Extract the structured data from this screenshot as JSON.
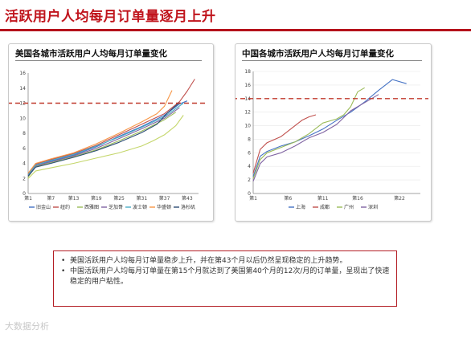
{
  "header": {
    "title": "活跃用户人均每月订单量逐月上升"
  },
  "notes": [
    "美国活跃用户人均每月订单量稳步上升，并在第43个月以后仍然呈现稳定的上升趋势。",
    "中国活跃用户人均每月订单量在第15个月就达到了美国第40个月的12次/月的订单量，呈现出了快速稳定的用户粘性。"
  ],
  "bullet_char": "•",
  "watermark": "大数据分析",
  "colors": {
    "title_red": "#c0141c",
    "ref_line": "#c0392b",
    "grid": "#e8e8e8"
  },
  "chart_data": [
    {
      "type": "line",
      "title": "美国各城市活跃用户人均每月订单量变化",
      "xlabel": "",
      "ylabel": "",
      "x_ticks": [
        "第1",
        "第7",
        "第13",
        "第19",
        "第25",
        "第31",
        "第37",
        "第43"
      ],
      "ylim": [
        0,
        16
      ],
      "yticks": [
        0,
        2,
        4,
        6,
        8,
        10,
        12,
        14,
        16
      ],
      "grid": false,
      "legend": "bottom",
      "reference_line": {
        "y": 12,
        "style": "dashed"
      },
      "series": [
        {
          "name": "旧金山",
          "color": "#4472c4",
          "x": [
            1,
            3,
            7,
            13,
            19,
            25,
            31,
            37,
            41,
            43
          ],
          "y": [
            2.5,
            3.8,
            4.3,
            5.1,
            6.2,
            7.6,
            8.9,
            10.4,
            11.9,
            12.3
          ]
        },
        {
          "name": "纽约",
          "color": "#c0504d",
          "x": [
            1,
            3,
            7,
            13,
            19,
            25,
            31,
            37,
            41,
            43,
            45
          ],
          "y": [
            2.6,
            3.9,
            4.5,
            5.3,
            6.4,
            7.8,
            9.2,
            10.6,
            12.2,
            13.6,
            15.2
          ]
        },
        {
          "name": "西雅图",
          "color": "#9bbb59",
          "x": [
            1,
            3,
            7,
            13,
            19,
            25,
            31,
            37,
            40
          ],
          "y": [
            2.2,
            3.6,
            4.1,
            4.9,
            5.8,
            7.0,
            8.3,
            9.8,
            10.8
          ]
        },
        {
          "name": "芝加哥",
          "color": "#8064a2",
          "x": [
            1,
            3,
            7,
            13,
            19,
            25,
            31,
            37,
            41
          ],
          "y": [
            2.4,
            3.7,
            4.2,
            5.0,
            6.0,
            7.3,
            8.6,
            10.0,
            11.4
          ]
        },
        {
          "name": "波士顿",
          "color": "#4bacc6",
          "x": [
            1,
            3,
            7,
            13,
            19,
            25,
            31,
            37,
            42
          ],
          "y": [
            2.5,
            3.8,
            4.4,
            5.2,
            6.3,
            7.5,
            8.8,
            10.2,
            12.0
          ]
        },
        {
          "name": "华盛顿",
          "color": "#f79646",
          "x": [
            1,
            3,
            7,
            13,
            19,
            25,
            31,
            35,
            37,
            39
          ],
          "y": [
            2.7,
            4.0,
            4.6,
            5.4,
            6.6,
            8.0,
            9.5,
            10.6,
            11.6,
            13.7
          ]
        },
        {
          "name": "洛杉矶",
          "color": "#2c4d75",
          "x": [
            1,
            3,
            7,
            13,
            19,
            25,
            31,
            35,
            38,
            41
          ],
          "y": [
            2.3,
            3.5,
            4.0,
            4.8,
            5.7,
            6.8,
            8.1,
            9.2,
            10.8,
            12.1
          ]
        },
        {
          "name": "",
          "color": "#c4d66a",
          "x": [
            1,
            3,
            7,
            13,
            19,
            25,
            31,
            34,
            37,
            40,
            42
          ],
          "y": [
            2.0,
            3.0,
            3.4,
            4.0,
            4.7,
            5.4,
            6.3,
            7.0,
            7.8,
            9.0,
            10.4
          ]
        }
      ]
    },
    {
      "type": "line",
      "title": "中国各城市活跃用户人均每月订单量变化",
      "xlabel": "",
      "ylabel": "",
      "x_ticks": [
        "第1",
        "第6",
        "第11",
        "第16",
        "第22"
      ],
      "ylim": [
        0,
        18
      ],
      "yticks": [
        0,
        2,
        4,
        6,
        8,
        10,
        12,
        14,
        16,
        18
      ],
      "grid": true,
      "legend": "bottom",
      "reference_line": {
        "y": 14,
        "style": "dashed"
      },
      "series": [
        {
          "name": "上海",
          "color": "#4472c4",
          "x": [
            1,
            2,
            3,
            5,
            7,
            9,
            11,
            13,
            15,
            17,
            19,
            21,
            23
          ],
          "y": [
            2.5,
            5.5,
            6.2,
            7.0,
            7.6,
            8.5,
            9.5,
            10.8,
            12.0,
            13.5,
            15.2,
            16.8,
            16.2
          ]
        },
        {
          "name": "成都",
          "color": "#c0504d",
          "x": [
            1,
            2,
            3,
            5,
            7,
            8,
            9,
            10
          ],
          "y": [
            3.0,
            6.5,
            7.5,
            8.4,
            10.0,
            10.8,
            11.3,
            11.6
          ]
        },
        {
          "name": "广州",
          "color": "#9bbb59",
          "x": [
            1,
            2,
            3,
            5,
            7,
            9,
            11,
            13,
            14,
            15,
            16,
            17
          ],
          "y": [
            2.2,
            5.0,
            6.0,
            6.8,
            7.6,
            8.8,
            10.4,
            11.0,
            11.6,
            12.8,
            15.0,
            15.6
          ]
        },
        {
          "name": "深圳",
          "color": "#8064a2",
          "x": [
            1,
            2,
            3,
            5,
            7,
            9,
            11,
            13,
            15,
            16,
            17,
            18,
            19
          ],
          "y": [
            1.8,
            4.4,
            5.4,
            6.0,
            7.0,
            8.2,
            9.0,
            10.2,
            12.2,
            12.8,
            13.4,
            14.0,
            14.6
          ]
        }
      ]
    }
  ]
}
